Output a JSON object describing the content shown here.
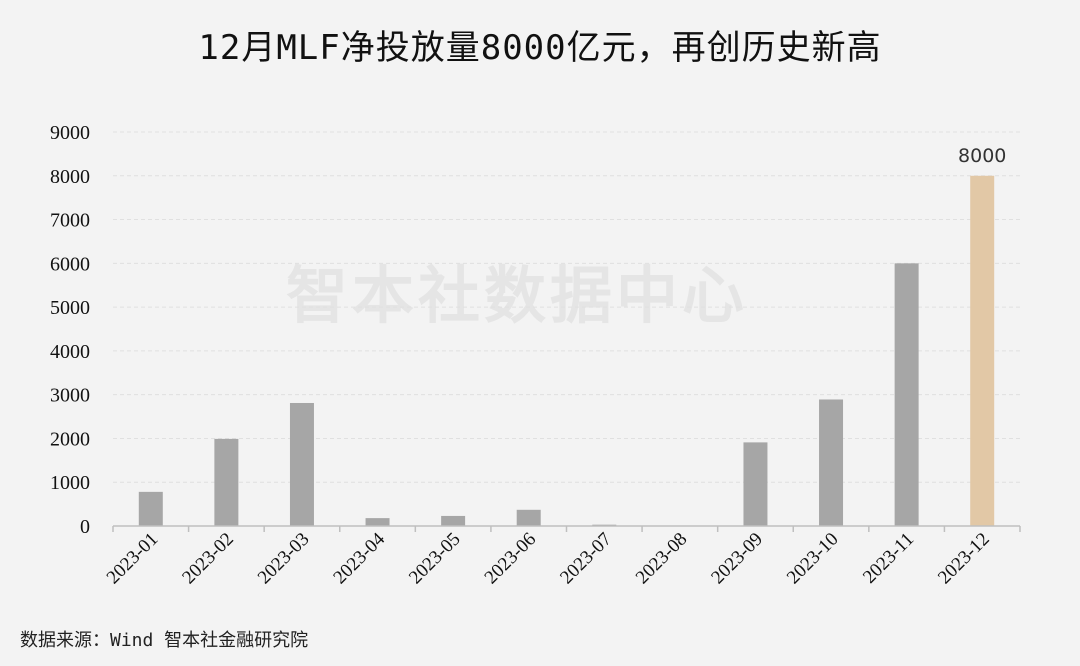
{
  "title": "12月MLF净投放量8000亿元，再创历史新高",
  "watermark": "智本社数据中心",
  "source": "数据来源：Wind 智本社金融研究院",
  "colors": {
    "bar": "#a6a6a6",
    "highlight": "#e2c8a6",
    "grid": "#e0e0e0",
    "axis": "#bfbfbf"
  },
  "chart_data": {
    "type": "bar",
    "categories": [
      "2023-01",
      "2023-02",
      "2023-03",
      "2023-04",
      "2023-05",
      "2023-06",
      "2023-07",
      "2023-08",
      "2023-09",
      "2023-10",
      "2023-11",
      "2023-12"
    ],
    "values": [
      780,
      1990,
      2810,
      180,
      230,
      370,
      30,
      0,
      1910,
      2890,
      6000,
      8000
    ],
    "highlight_index": 11,
    "data_labels": [
      {
        "index": 11,
        "text": "8000"
      }
    ],
    "ylim": [
      0,
      9000
    ],
    "yticks": [
      0,
      1000,
      2000,
      3000,
      4000,
      5000,
      6000,
      7000,
      8000,
      9000
    ],
    "grid": true,
    "legend": "none",
    "xlabel": "",
    "ylabel": ""
  }
}
